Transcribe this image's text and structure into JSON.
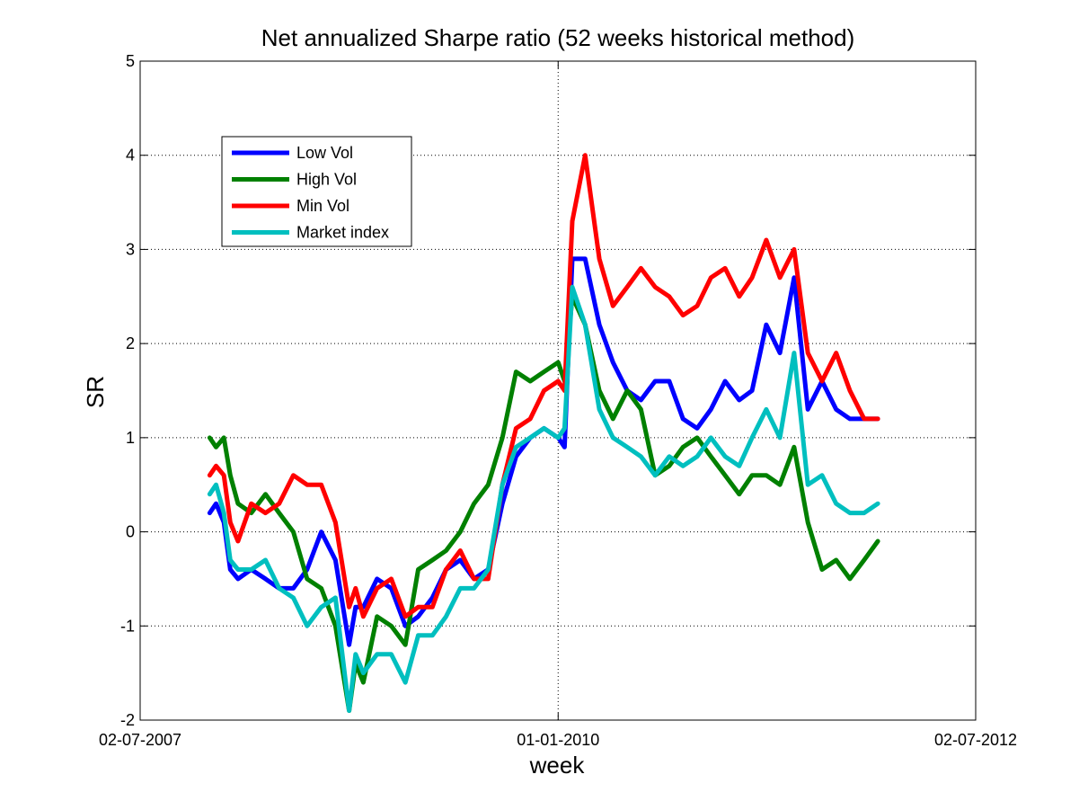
{
  "chart_data": {
    "type": "line",
    "title": "Net annualized Sharpe ratio (52 weeks historical method)",
    "xlabel": "week",
    "ylabel": "SR",
    "xlim": [
      "2007-07-02",
      "2012-07-02"
    ],
    "ylim": [
      -2,
      5
    ],
    "yticks": [
      -2,
      -1,
      0,
      1,
      2,
      3,
      4,
      5
    ],
    "xticks": [
      {
        "date": "2007-07-02",
        "label": "02-07-2007"
      },
      {
        "date": "2010-01-01",
        "label": "01-01-2010"
      },
      {
        "date": "2012-07-02",
        "label": "02-07-2012"
      }
    ],
    "grid": true,
    "legend_position": "top-left",
    "series": [
      {
        "name": "Low Vol",
        "color": "#0000ff",
        "x": [
          "2007-12-01",
          "2007-12-15",
          "2008-01-01",
          "2008-01-15",
          "2008-02-01",
          "2008-03-01",
          "2008-04-01",
          "2008-05-01",
          "2008-06-01",
          "2008-07-01",
          "2008-08-01",
          "2008-09-01",
          "2008-10-01",
          "2008-10-15",
          "2008-11-01",
          "2008-12-01",
          "2009-01-01",
          "2009-02-01",
          "2009-03-01",
          "2009-04-01",
          "2009-05-01",
          "2009-06-01",
          "2009-07-01",
          "2009-08-01",
          "2009-09-01",
          "2009-10-01",
          "2009-11-01",
          "2009-12-01",
          "2010-01-01",
          "2010-01-15",
          "2010-02-01",
          "2010-03-01",
          "2010-04-01",
          "2010-05-01",
          "2010-06-01",
          "2010-07-01",
          "2010-08-01",
          "2010-09-01",
          "2010-10-01",
          "2010-11-01",
          "2010-12-01",
          "2011-01-01",
          "2011-02-01",
          "2011-03-01",
          "2011-04-01",
          "2011-05-01",
          "2011-06-01",
          "2011-07-01",
          "2011-08-01",
          "2011-09-01",
          "2011-10-01",
          "2011-11-01",
          "2011-12-01"
        ],
        "y": [
          0.2,
          0.3,
          0.1,
          -0.4,
          -0.5,
          -0.4,
          -0.5,
          -0.6,
          -0.6,
          -0.4,
          0.0,
          -0.3,
          -1.2,
          -0.8,
          -0.8,
          -0.5,
          -0.6,
          -1.0,
          -0.9,
          -0.7,
          -0.4,
          -0.3,
          -0.5,
          -0.4,
          0.3,
          0.8,
          1.0,
          1.1,
          1.0,
          0.9,
          2.9,
          2.9,
          2.2,
          1.8,
          1.5,
          1.4,
          1.6,
          1.6,
          1.2,
          1.1,
          1.3,
          1.6,
          1.4,
          1.5,
          2.2,
          1.9,
          2.7,
          1.3,
          1.6,
          1.3,
          1.2,
          1.2,
          1.2
        ]
      },
      {
        "name": "High Vol",
        "color": "#008000",
        "x": [
          "2007-12-01",
          "2007-12-15",
          "2008-01-01",
          "2008-01-15",
          "2008-02-01",
          "2008-03-01",
          "2008-04-01",
          "2008-05-01",
          "2008-06-01",
          "2008-07-01",
          "2008-08-01",
          "2008-09-01",
          "2008-10-01",
          "2008-10-15",
          "2008-11-01",
          "2008-12-01",
          "2009-01-01",
          "2009-02-01",
          "2009-03-01",
          "2009-04-01",
          "2009-05-01",
          "2009-06-01",
          "2009-07-01",
          "2009-08-01",
          "2009-09-01",
          "2009-10-01",
          "2009-11-01",
          "2009-12-01",
          "2010-01-01",
          "2010-01-15",
          "2010-02-01",
          "2010-03-01",
          "2010-04-01",
          "2010-05-01",
          "2010-06-01",
          "2010-07-01",
          "2010-08-01",
          "2010-09-01",
          "2010-10-01",
          "2010-11-01",
          "2010-12-01",
          "2011-01-01",
          "2011-02-01",
          "2011-03-01",
          "2011-04-01",
          "2011-05-01",
          "2011-06-01",
          "2011-07-01",
          "2011-08-01",
          "2011-09-01",
          "2011-10-01",
          "2011-11-01",
          "2011-12-01"
        ],
        "y": [
          1.0,
          0.9,
          1.0,
          0.6,
          0.3,
          0.2,
          0.4,
          0.2,
          0.0,
          -0.5,
          -0.6,
          -1.0,
          -1.9,
          -1.4,
          -1.6,
          -0.9,
          -1.0,
          -1.2,
          -0.4,
          -0.3,
          -0.2,
          0.0,
          0.3,
          0.5,
          1.0,
          1.7,
          1.6,
          1.7,
          1.8,
          1.6,
          2.5,
          2.2,
          1.5,
          1.2,
          1.5,
          1.3,
          0.6,
          0.7,
          0.9,
          1.0,
          0.8,
          0.6,
          0.4,
          0.6,
          0.6,
          0.5,
          0.9,
          0.1,
          -0.4,
          -0.3,
          -0.5,
          -0.3,
          -0.1
        ]
      },
      {
        "name": "Min Vol",
        "color": "#ff0000",
        "x": [
          "2007-12-01",
          "2007-12-15",
          "2008-01-01",
          "2008-01-15",
          "2008-02-01",
          "2008-03-01",
          "2008-04-01",
          "2008-05-01",
          "2008-06-01",
          "2008-07-01",
          "2008-08-01",
          "2008-09-01",
          "2008-10-01",
          "2008-10-15",
          "2008-11-01",
          "2008-12-01",
          "2009-01-01",
          "2009-02-01",
          "2009-03-01",
          "2009-04-01",
          "2009-05-01",
          "2009-06-01",
          "2009-07-01",
          "2009-08-01",
          "2009-09-01",
          "2009-10-01",
          "2009-11-01",
          "2009-12-01",
          "2010-01-01",
          "2010-01-15",
          "2010-02-01",
          "2010-03-01",
          "2010-04-01",
          "2010-05-01",
          "2010-06-01",
          "2010-07-01",
          "2010-08-01",
          "2010-09-01",
          "2010-10-01",
          "2010-11-01",
          "2010-12-01",
          "2011-01-01",
          "2011-02-01",
          "2011-03-01",
          "2011-04-01",
          "2011-05-01",
          "2011-06-01",
          "2011-07-01",
          "2011-08-01",
          "2011-09-01",
          "2011-10-01",
          "2011-11-01",
          "2011-12-01"
        ],
        "y": [
          0.6,
          0.7,
          0.6,
          0.1,
          -0.1,
          0.3,
          0.2,
          0.3,
          0.6,
          0.5,
          0.5,
          0.1,
          -0.8,
          -0.6,
          -0.9,
          -0.6,
          -0.5,
          -0.9,
          -0.8,
          -0.8,
          -0.4,
          -0.2,
          -0.5,
          -0.5,
          0.5,
          1.1,
          1.2,
          1.5,
          1.6,
          1.5,
          3.3,
          4.0,
          2.9,
          2.4,
          2.6,
          2.8,
          2.6,
          2.5,
          2.3,
          2.4,
          2.7,
          2.8,
          2.5,
          2.7,
          3.1,
          2.7,
          3.0,
          1.9,
          1.6,
          1.9,
          1.5,
          1.2,
          1.2
        ]
      },
      {
        "name": "Market index",
        "color": "#00bfbf",
        "x": [
          "2007-12-01",
          "2007-12-15",
          "2008-01-01",
          "2008-01-15",
          "2008-02-01",
          "2008-03-01",
          "2008-04-01",
          "2008-05-01",
          "2008-06-01",
          "2008-07-01",
          "2008-08-01",
          "2008-09-01",
          "2008-10-01",
          "2008-10-15",
          "2008-11-01",
          "2008-12-01",
          "2009-01-01",
          "2009-02-01",
          "2009-03-01",
          "2009-04-01",
          "2009-05-01",
          "2009-06-01",
          "2009-07-01",
          "2009-08-01",
          "2009-09-01",
          "2009-10-01",
          "2009-11-01",
          "2009-12-01",
          "2010-01-01",
          "2010-01-15",
          "2010-02-01",
          "2010-03-01",
          "2010-04-01",
          "2010-05-01",
          "2010-06-01",
          "2010-07-01",
          "2010-08-01",
          "2010-09-01",
          "2010-10-01",
          "2010-11-01",
          "2010-12-01",
          "2011-01-01",
          "2011-02-01",
          "2011-03-01",
          "2011-04-01",
          "2011-05-01",
          "2011-06-01",
          "2011-07-01",
          "2011-08-01",
          "2011-09-01",
          "2011-10-01",
          "2011-11-01",
          "2011-12-01"
        ],
        "y": [
          0.4,
          0.5,
          0.2,
          -0.3,
          -0.4,
          -0.4,
          -0.3,
          -0.6,
          -0.7,
          -1.0,
          -0.8,
          -0.7,
          -1.9,
          -1.3,
          -1.5,
          -1.3,
          -1.3,
          -1.6,
          -1.1,
          -1.1,
          -0.9,
          -0.6,
          -0.6,
          -0.4,
          0.5,
          0.9,
          1.0,
          1.1,
          1.0,
          1.1,
          2.6,
          2.2,
          1.3,
          1.0,
          0.9,
          0.8,
          0.6,
          0.8,
          0.7,
          0.8,
          1.0,
          0.8,
          0.7,
          1.0,
          1.3,
          1.0,
          1.9,
          0.5,
          0.6,
          0.3,
          0.2,
          0.2,
          0.3
        ]
      }
    ]
  }
}
